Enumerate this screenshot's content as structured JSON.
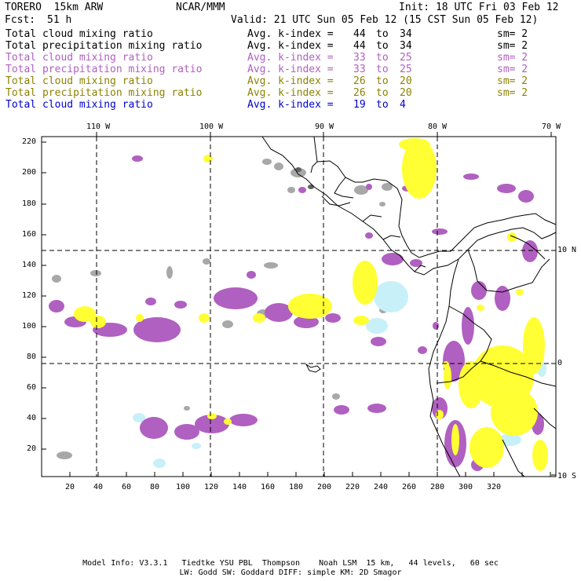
{
  "header": {
    "model": "TORERO  15km ARW",
    "org": "NCAR/MMM",
    "init": "Init: 18 UTC Fri 03 Feb 12",
    "fcst_label": "Fcst:",
    "fcst_value": "51 h",
    "valid": "Valid: 21 UTC Sun 05 Feb 12 (15 CST Sun 05 Feb 12)"
  },
  "legend": [
    {
      "field": "Total cloud mixing ratio",
      "avg": "Avg. k-index =",
      "k1": "44",
      "to": "to",
      "k2": "34",
      "sm": "sm= 2",
      "color": "#000000"
    },
    {
      "field": "Total precipitation mixing ratio",
      "avg": "Avg. k-index =",
      "k1": "44",
      "to": "to",
      "k2": "34",
      "sm": "sm= 2",
      "color": "#000000"
    },
    {
      "field": "Total cloud mixing ratio",
      "avg": "Avg. k-index =",
      "k1": "33",
      "to": "to",
      "k2": "25",
      "sm": "sm= 2",
      "color": "#b060c0"
    },
    {
      "field": "Total precipitation mixing ratio",
      "avg": "Avg. k-index =",
      "k1": "33",
      "to": "to",
      "k2": "25",
      "sm": "sm= 2",
      "color": "#b060c0"
    },
    {
      "field": "Total cloud mixing ratio",
      "avg": "Avg. k-index =",
      "k1": "26",
      "to": "to",
      "k2": "20",
      "sm": "sm= 2",
      "color": "#8c8200"
    },
    {
      "field": "Total precipitation mixing ratio",
      "avg": "Avg. k-index =",
      "k1": "26",
      "to": "to",
      "k2": "20",
      "sm": "sm= 2",
      "color": "#8c8200"
    },
    {
      "field": "Total cloud mixing ratio",
      "avg": "Avg. k-index =",
      "k1": "19",
      "to": "to",
      "k2": "4",
      "sm": "",
      "color": "#0000d0"
    }
  ],
  "map": {
    "lon_labels": [
      "110 W",
      "100 W",
      "90 W",
      "80 W",
      "70 W"
    ],
    "lat_labels": [
      "10 N",
      "0",
      "10 S"
    ],
    "y_ticks": [
      "220",
      "200",
      "180",
      "160",
      "140",
      "120",
      "100",
      "80",
      "60",
      "40",
      "20"
    ],
    "x_ticks": [
      "20",
      "40",
      "60",
      "80",
      "100",
      "120",
      "140",
      "160",
      "180",
      "200",
      "220",
      "240",
      "260",
      "280",
      "300",
      "320"
    ],
    "colors": {
      "gray": "#a8a8a8",
      "dark_gray": "#606060",
      "purple": "#b060c0",
      "yellow": "#ffff33",
      "light_blue": "#c8f0f8",
      "land_line": "#000000"
    }
  },
  "footer": {
    "line1": "Model Info: V3.3.1   Tiedtke YSU PBL  Thompson    Noah LSM  15 km,   44 levels,   60 sec",
    "line2": "LW: Godd SW: Goddard DIFF: simple KM: 2D Smagor"
  }
}
